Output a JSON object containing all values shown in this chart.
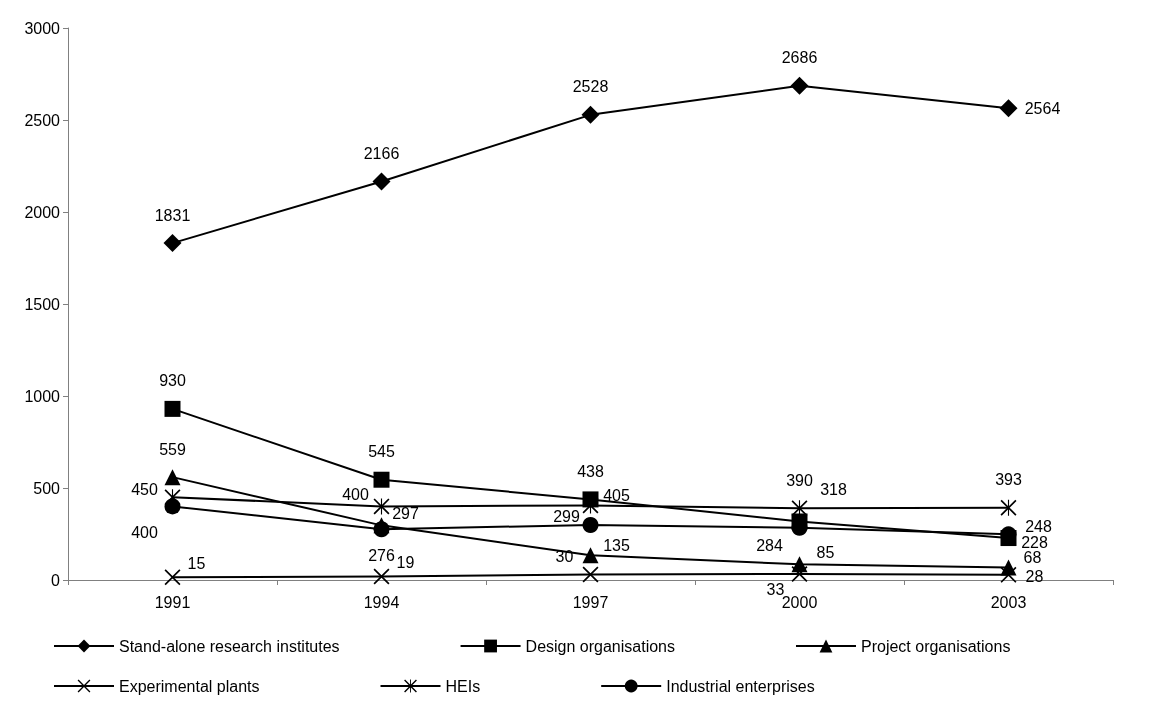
{
  "chart_data": {
    "type": "line",
    "categories": [
      "1991",
      "1994",
      "1997",
      "2000",
      "2003"
    ],
    "ylim": [
      0,
      3000
    ],
    "yticks": [
      0,
      500,
      1000,
      1500,
      2000,
      2500,
      3000
    ],
    "grid": false,
    "legend": "bottom",
    "data_labels": true,
    "line_style": "solid",
    "series": [
      {
        "name": "Stand-alone research institutes",
        "color": "#000000",
        "marker": "diamond",
        "values": [
          1831,
          2166,
          2528,
          2686,
          2564
        ]
      },
      {
        "name": "Design organisations",
        "color": "#000000",
        "marker": "square",
        "values": [
          930,
          545,
          438,
          318,
          228
        ]
      },
      {
        "name": "Project organisations",
        "color": "#000000",
        "marker": "triangle",
        "values": [
          559,
          297,
          135,
          85,
          68
        ]
      },
      {
        "name": "Experimental plants",
        "color": "#000000",
        "marker": "cross",
        "values": [
          15,
          19,
          30,
          33,
          28
        ]
      },
      {
        "name": "HEIs",
        "color": "#000000",
        "marker": "star",
        "values": [
          450,
          400,
          405,
          390,
          393
        ]
      },
      {
        "name": "Industrial enterprises",
        "color": "#000000",
        "marker": "circle",
        "values": [
          400,
          276,
          299,
          284,
          248
        ]
      }
    ]
  }
}
